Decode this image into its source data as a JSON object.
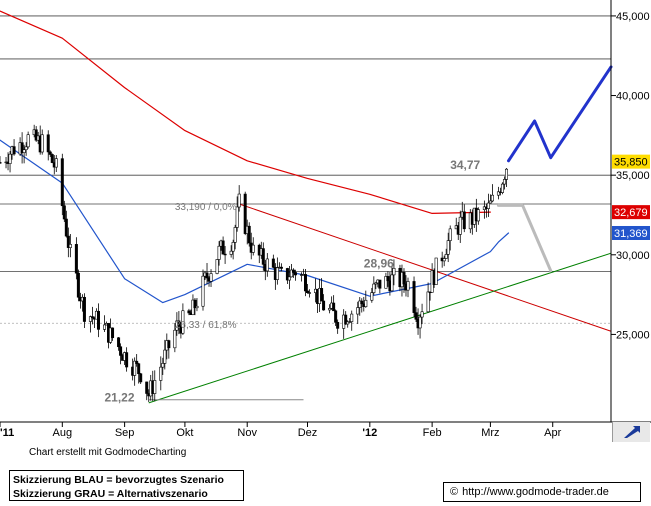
{
  "chart_data": {
    "type": "candlestick",
    "title": "",
    "price_axis": {
      "ticks": [
        25,
        30,
        35,
        40,
        45
      ],
      "tick_labels": [
        "25,000",
        "30,000",
        "35,000",
        "40,000",
        "45,000"
      ],
      "range": [
        19.5,
        46
      ]
    },
    "time_axis": {
      "labels": [
        "'11",
        "Aug",
        "Sep",
        "Okt",
        "Nov",
        "Dez",
        "'12",
        "Feb",
        "Mrz",
        "Apr"
      ],
      "range": [
        "2011-07-01",
        "2012-04-30"
      ],
      "month_starts": [
        "2011-07-01",
        "2011-08-01",
        "2011-09-01",
        "2011-10-01",
        "2011-11-01",
        "2011-12-01",
        "2012-01-01",
        "2012-02-01",
        "2012-03-01",
        "2012-04-01"
      ]
    },
    "grid": "horizontal",
    "horizontal_levels": [
      45,
      42.3,
      35,
      33.19,
      28.96,
      25.7
    ],
    "price_path": [
      [
        "2011-07-01",
        35.8
      ],
      [
        "2011-07-08",
        36.7
      ],
      [
        "2011-07-15",
        37.3
      ],
      [
        "2011-07-22",
        37.0
      ],
      [
        "2011-07-29",
        35.4
      ],
      [
        "2011-08-05",
        30.0
      ],
      [
        "2011-08-12",
        26.5
      ],
      [
        "2011-08-19",
        25.8
      ],
      [
        "2011-08-26",
        24.8
      ],
      [
        "2011-09-02",
        23.5
      ],
      [
        "2011-09-09",
        22.6
      ],
      [
        "2011-09-13",
        21.22
      ],
      [
        "2011-09-20",
        23.3
      ],
      [
        "2011-09-27",
        25.5
      ],
      [
        "2011-10-04",
        26.2
      ],
      [
        "2011-10-11",
        28.4
      ],
      [
        "2011-10-18",
        30.2
      ],
      [
        "2011-10-25",
        31.0
      ],
      [
        "2011-10-28",
        33.19
      ],
      [
        "2011-11-04",
        30.2
      ],
      [
        "2011-11-11",
        29.4
      ],
      [
        "2011-11-18",
        28.6
      ],
      [
        "2011-11-25",
        29.0
      ],
      [
        "2011-12-02",
        28.2
      ],
      [
        "2011-12-09",
        26.8
      ],
      [
        "2011-12-16",
        26.0
      ],
      [
        "2011-12-23",
        26.4
      ],
      [
        "2011-12-30",
        27.2
      ],
      [
        "2012-01-06",
        28.2
      ],
      [
        "2012-01-13",
        28.5
      ],
      [
        "2012-01-20",
        28.2
      ],
      [
        "2012-01-25",
        26.1
      ],
      [
        "2012-02-01",
        28.5
      ],
      [
        "2012-02-08",
        30.6
      ],
      [
        "2012-02-15",
        32.0
      ],
      [
        "2012-02-22",
        32.3
      ],
      [
        "2012-02-29",
        32.9
      ],
      [
        "2012-03-05",
        34.0
      ],
      [
        "2012-03-09",
        35.6
      ]
    ],
    "series": [
      {
        "name": "",
        "color": "#dd0000",
        "last_value": 32.679,
        "value_label": "32,679",
        "points": [
          [
            "2011-07-01",
            45.3
          ],
          [
            "2011-08-01",
            43.6
          ],
          [
            "2011-09-01",
            40.5
          ],
          [
            "2011-10-01",
            37.8
          ],
          [
            "2011-11-01",
            35.9
          ],
          [
            "2011-12-01",
            34.8
          ],
          [
            "2012-01-01",
            33.8
          ],
          [
            "2012-02-01",
            32.6
          ],
          [
            "2012-03-01",
            32.68
          ]
        ]
      },
      {
        "name": "",
        "color": "#2255cc",
        "last_value": 31.369,
        "value_label": "31,369",
        "points": [
          [
            "2011-07-01",
            37.2
          ],
          [
            "2011-08-01",
            34.5
          ],
          [
            "2011-09-01",
            28.5
          ],
          [
            "2011-09-20",
            27.0
          ],
          [
            "2011-10-01",
            27.5
          ],
          [
            "2011-11-01",
            29.4
          ],
          [
            "2011-12-01",
            28.7
          ],
          [
            "2012-01-01",
            27.4
          ],
          [
            "2012-02-01",
            28.2
          ],
          [
            "2012-03-01",
            30.2
          ],
          [
            "2012-03-05",
            30.8
          ],
          [
            "2012-03-10",
            31.37
          ]
        ]
      }
    ],
    "trendlines": [
      {
        "color": "#cc0000",
        "from": [
          "2011-10-28",
          33.19
        ],
        "to": [
          "2012-04-30",
          25.2
        ]
      },
      {
        "color": "#008000",
        "from": [
          "2011-09-13",
          20.7
        ],
        "to": [
          "2012-04-30",
          30.1
        ]
      },
      {
        "color": "#888888",
        "from": [
          "2011-09-13",
          20.9
        ],
        "to": [
          "2011-11-29",
          20.9
        ]
      }
    ],
    "scenarios": [
      {
        "name": "BLAU",
        "color": "#2233cc",
        "points": [
          [
            "2012-03-10",
            35.9
          ],
          [
            "2012-03-23",
            38.4
          ],
          [
            "2012-03-31",
            36.1
          ],
          [
            "2012-04-30",
            41.8
          ]
        ]
      },
      {
        "name": "GRAU",
        "color": "#bbbbbb",
        "points": [
          [
            "2012-03-05",
            33.1
          ],
          [
            "2012-03-17",
            33.1
          ],
          [
            "2012-03-31",
            29.0
          ]
        ]
      }
    ],
    "annotations": [
      {
        "text": "34,77",
        "at": [
          "2012-02-10",
          35.4
        ],
        "color": "#777777",
        "size": 12,
        "weight": "bold"
      },
      {
        "text": "33,190 / 0,0%",
        "at": [
          "2011-09-26",
          32.8
        ],
        "color": "#777777",
        "size": 10,
        "weight": "normal"
      },
      {
        "text": "28,96",
        "at": [
          "2011-12-29",
          29.2
        ],
        "color": "#777777",
        "size": 12,
        "weight": "bold"
      },
      {
        "text": "26,33 / 61,8%",
        "at": [
          "2011-09-26",
          25.4
        ],
        "color": "#777777",
        "size": 10,
        "weight": "normal"
      },
      {
        "text": "21,22",
        "at": [
          "2011-08-22",
          20.8
        ],
        "color": "#777777",
        "size": 12,
        "weight": "bold"
      }
    ],
    "value_badges": [
      {
        "value": 35.85,
        "label": "35,850",
        "bg": "#ffdd00",
        "color": "#000000"
      },
      {
        "value": 32.679,
        "label": "32,679",
        "bg": "#dd0000",
        "color": "#ffffff"
      },
      {
        "value": 31.369,
        "label": "31,369",
        "bg": "#2255cc",
        "color": "#ffffff"
      }
    ]
  },
  "footer": {
    "credit": "Chart erstellt mit GodmodeCharting",
    "legend_line1": "Skizzierung BLAU = bevorzugtes Szenario",
    "legend_line2": "Skizzierung GRAU = Alternativszenario",
    "website_symbol": "©",
    "website": "http://www.godmode-trader.de",
    "nav_icon": "expand-arrow-icon"
  }
}
